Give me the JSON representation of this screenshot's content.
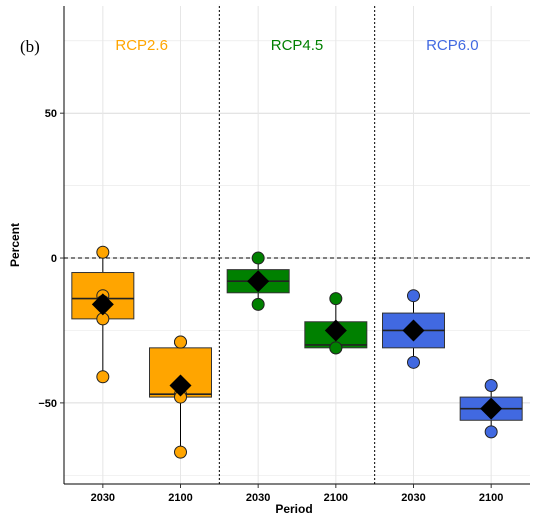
{
  "panel_tag": "(b)",
  "chart_data": {
    "type": "box",
    "xlabel": "Period",
    "ylabel": "Percent",
    "ylim": [
      -78,
      87
    ],
    "yticks": [
      -50,
      0,
      50
    ],
    "reference_line": 0,
    "grid": true,
    "groups": [
      {
        "name": "RCP2.6",
        "color": "#FFA500",
        "boxes": [
          {
            "period": "2030",
            "q1": -21,
            "median": -14,
            "q3": -5,
            "whisker_low": -41,
            "whisker_high": 2,
            "mean": -16,
            "points": [
              2,
              -13,
              -15,
              -21,
              -41
            ]
          },
          {
            "period": "2100",
            "q1": -48,
            "median": -47,
            "q3": -31,
            "whisker_low": -67,
            "whisker_high": -29,
            "mean": -44,
            "points": [
              -29,
              -29,
              -47,
              -48,
              -67
            ]
          }
        ]
      },
      {
        "name": "RCP4.5",
        "color": "#008000",
        "boxes": [
          {
            "period": "2030",
            "q1": -12,
            "median": -8,
            "q3": -4,
            "whisker_low": -16,
            "whisker_high": 0,
            "mean": -8,
            "points": [
              0,
              -16
            ]
          },
          {
            "period": "2100",
            "q1": -31,
            "median": -30,
            "q3": -22,
            "whisker_low": -31,
            "whisker_high": -14,
            "mean": -25,
            "points": [
              -14,
              -31,
              -31
            ]
          }
        ]
      },
      {
        "name": "RCP6.0",
        "color": "#4169E1",
        "boxes": [
          {
            "period": "2030",
            "q1": -31,
            "median": -25,
            "q3": -19,
            "whisker_low": -36,
            "whisker_high": -13,
            "mean": -25,
            "points": [
              -13,
              -36
            ]
          },
          {
            "period": "2100",
            "q1": -56,
            "median": -52,
            "q3": -48,
            "whisker_low": -60,
            "whisker_high": -44,
            "mean": -52,
            "points": [
              -44,
              -60
            ]
          }
        ]
      }
    ]
  }
}
